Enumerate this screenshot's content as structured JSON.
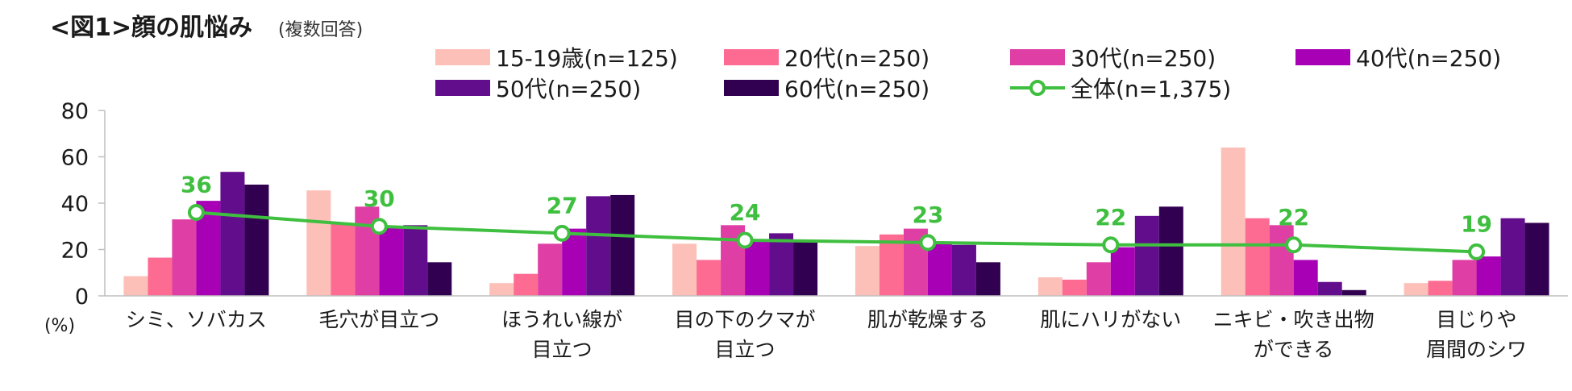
{
  "title": {
    "main": "<図1>顔の肌悩み",
    "sub": "(複数回答)"
  },
  "unit_label": "(%)",
  "chart_data": {
    "type": "bar",
    "categories": [
      [
        "シミ、ソバカス"
      ],
      [
        "毛穴が目立つ"
      ],
      [
        "ほうれい線が",
        "目立つ"
      ],
      [
        "目の下のクマが",
        "目立つ"
      ],
      [
        "肌が乾燥する"
      ],
      [
        "肌にハリがない"
      ],
      [
        "ニキビ・吹き出物",
        "ができる"
      ],
      [
        "目じりや",
        "眉間のシワ"
      ]
    ],
    "series": [
      {
        "name": "15-19歳(n=125)",
        "color": "#fcc0b8",
        "values": [
          8.5,
          45.5,
          5.5,
          22.5,
          21.5,
          8,
          64,
          5.5
        ]
      },
      {
        "name": "20代(n=250)",
        "color": "#fd6b93",
        "values": [
          16.5,
          31,
          9.5,
          15.5,
          26.5,
          7,
          33.5,
          6.5
        ]
      },
      {
        "name": "30代(n=250)",
        "color": "#df3ea5",
        "values": [
          33,
          38.5,
          22.5,
          30.5,
          29,
          14.5,
          30.5,
          15.5
        ]
      },
      {
        "name": "40代(n=250)",
        "color": "#a800b5",
        "values": [
          41,
          30,
          29,
          24,
          23.5,
          21,
          15.5,
          17
        ]
      },
      {
        "name": "50代(n=250)",
        "color": "#620e8c",
        "values": [
          53.5,
          30.5,
          43,
          27,
          22,
          34.5,
          6,
          33.5
        ]
      },
      {
        "name": "60代(n=250)",
        "color": "#320050",
        "values": [
          48,
          14.5,
          43.5,
          24,
          14.5,
          38.5,
          2.5,
          31.5
        ]
      }
    ],
    "total": {
      "name": "全体(n=1,375)",
      "color": "#3fbf3f",
      "values": [
        36,
        30,
        27,
        24,
        23,
        22,
        22,
        19
      ],
      "labels": [
        "36",
        "30",
        "27",
        "24",
        "23",
        "22",
        "22",
        "19"
      ]
    },
    "ylim": [
      0,
      80
    ],
    "yticks": [
      0,
      20,
      40,
      60,
      80
    ],
    "ytick_labels": [
      "0",
      "20",
      "40",
      "60",
      "80"
    ],
    "grid": false,
    "legend_position": "top"
  }
}
